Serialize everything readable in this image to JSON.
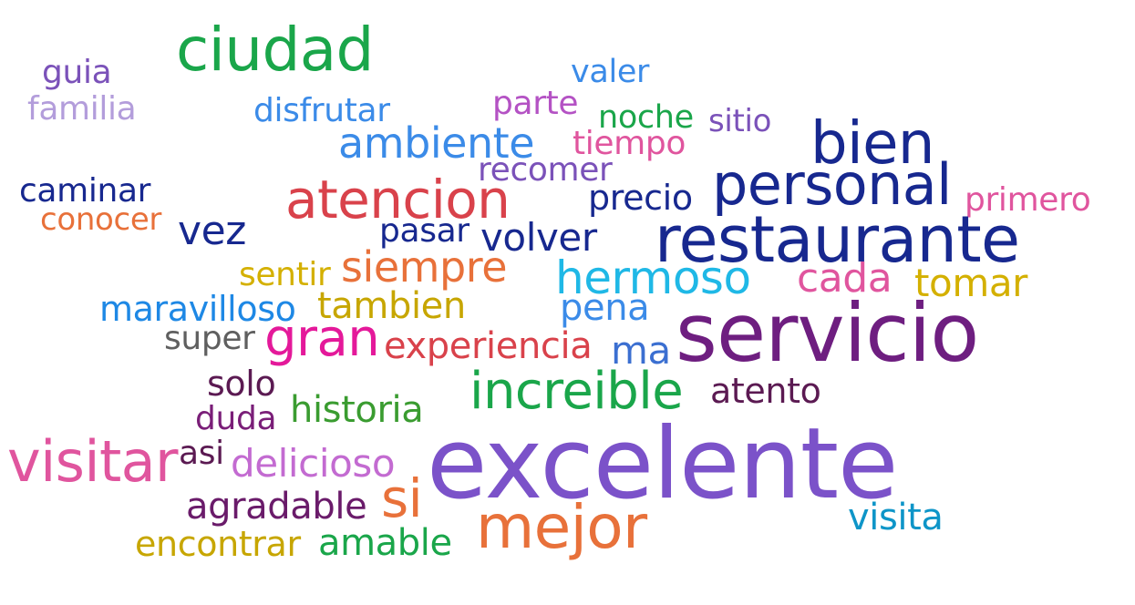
{
  "words": [
    {
      "text": "ciudad",
      "color": "#1aa64a"
    },
    {
      "text": "guia",
      "color": "#7b52b9"
    },
    {
      "text": "familia",
      "color": "#b39ddb"
    },
    {
      "text": "disfrutar",
      "color": "#3b8be8"
    },
    {
      "text": "valer",
      "color": "#3b8be8"
    },
    {
      "text": "parte",
      "color": "#b452c4"
    },
    {
      "text": "noche",
      "color": "#1aa64a"
    },
    {
      "text": "sitio",
      "color": "#7b52b9"
    },
    {
      "text": "ambiente",
      "color": "#3b8be8"
    },
    {
      "text": "tiempo",
      "color": "#e0559e"
    },
    {
      "text": "bien",
      "color": "#17288f"
    },
    {
      "text": "recomer",
      "color": "#7b52b9"
    },
    {
      "text": "caminar",
      "color": "#17288f"
    },
    {
      "text": "atencion",
      "color": "#d9424b"
    },
    {
      "text": "precio",
      "color": "#17288f"
    },
    {
      "text": "personal",
      "color": "#17288f"
    },
    {
      "text": "primero",
      "color": "#e0559e"
    },
    {
      "text": "conocer",
      "color": "#e8713a"
    },
    {
      "text": "vez",
      "color": "#17288f"
    },
    {
      "text": "pasar",
      "color": "#17288f"
    },
    {
      "text": "volver",
      "color": "#17288f"
    },
    {
      "text": "restaurante",
      "color": "#17288f"
    },
    {
      "text": "sentir",
      "color": "#d4b000"
    },
    {
      "text": "siempre",
      "color": "#e8713a"
    },
    {
      "text": "hermoso",
      "color": "#1fb8e6"
    },
    {
      "text": "cada",
      "color": "#e0559e"
    },
    {
      "text": "tomar",
      "color": "#d4b000"
    },
    {
      "text": "maravilloso",
      "color": "#1e88e5"
    },
    {
      "text": "tambien",
      "color": "#c7a600"
    },
    {
      "text": "pena",
      "color": "#3b8be8"
    },
    {
      "text": "super",
      "color": "#5f5f5f"
    },
    {
      "text": "gran",
      "color": "#e4199a"
    },
    {
      "text": "experiencia",
      "color": "#d9424b"
    },
    {
      "text": "ma",
      "color": "#3b6fd1"
    },
    {
      "text": "servicio",
      "color": "#6e1e80"
    },
    {
      "text": "solo",
      "color": "#5b1a52"
    },
    {
      "text": "increible",
      "color": "#1aa64a"
    },
    {
      "text": "atento",
      "color": "#5b1a52"
    },
    {
      "text": "historia",
      "color": "#3a9c30"
    },
    {
      "text": "duda",
      "color": "#7a1e78"
    },
    {
      "text": "visitar",
      "color": "#e0559e"
    },
    {
      "text": "asi",
      "color": "#5b1a52"
    },
    {
      "text": "delicioso",
      "color": "#c36bd1"
    },
    {
      "text": "excelente",
      "color": "#7b52c9"
    },
    {
      "text": "si",
      "color": "#e8713a"
    },
    {
      "text": "agradable",
      "color": "#6a1b6a"
    },
    {
      "text": "visita",
      "color": "#0e95c8"
    },
    {
      "text": "mejor",
      "color": "#e8713a"
    },
    {
      "text": "encontrar",
      "color": "#c7a600"
    },
    {
      "text": "amable",
      "color": "#1aa64a"
    }
  ]
}
